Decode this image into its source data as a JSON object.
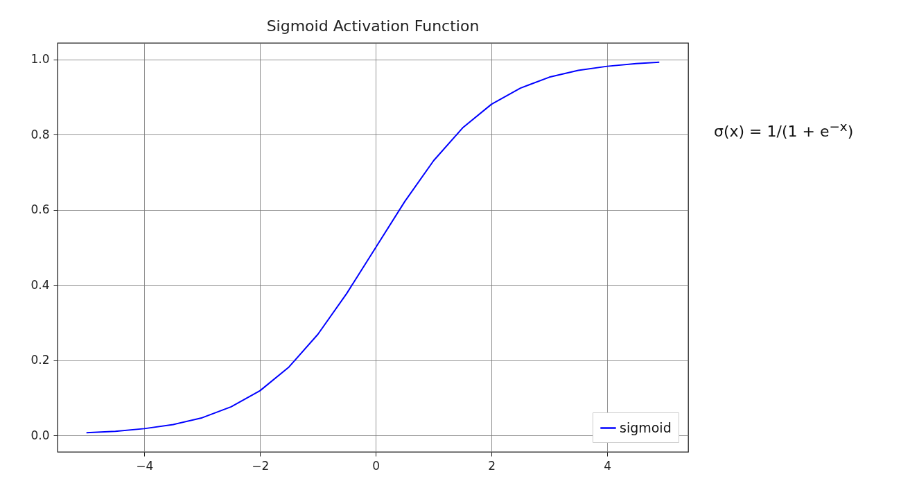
{
  "chart_data": {
    "type": "line",
    "title": "Sigmoid Activation Function",
    "x": [
      -5,
      -4.5,
      -4,
      -3.5,
      -3,
      -2.5,
      -2,
      -1.5,
      -1,
      -0.5,
      0,
      0.5,
      1,
      1.5,
      2,
      2.5,
      3,
      3.5,
      4,
      4.5,
      4.9
    ],
    "series": [
      {
        "name": "sigmoid",
        "color": "#0000ff",
        "values": [
          0.007,
          0.011,
          0.018,
          0.029,
          0.047,
          0.076,
          0.119,
          0.182,
          0.269,
          0.378,
          0.5,
          0.622,
          0.731,
          0.818,
          0.881,
          0.924,
          0.953,
          0.971,
          0.982,
          0.989,
          0.993
        ]
      }
    ],
    "xlim": [
      -5.5,
      5.4
    ],
    "xticks": [
      {
        "value": -4,
        "label": "−4"
      },
      {
        "value": -2,
        "label": "−2"
      },
      0,
      2,
      4
    ],
    "ylim": [
      -0.044,
      1.044
    ],
    "yticks": [
      {
        "value": 0,
        "label": "0.0"
      },
      {
        "value": 0.2,
        "label": "0.2"
      },
      {
        "value": 0.4,
        "label": "0.4"
      },
      {
        "value": 0.6,
        "label": "0.6"
      },
      {
        "value": 0.8,
        "label": "0.8"
      },
      {
        "value": 1,
        "label": "1.0"
      }
    ],
    "grid": true,
    "legend": "bottom right",
    "marker": "none",
    "line_style": "solid",
    "annotations": [
      "σ(x) = 1/(1 + e$^{−x}$)"
    ]
  }
}
